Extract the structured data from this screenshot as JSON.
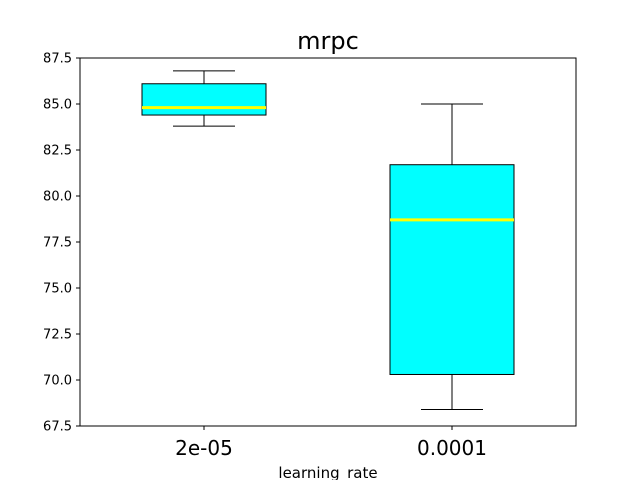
{
  "chart_data": {
    "type": "box",
    "title": "mrpc",
    "xlabel": "learning_rate",
    "ylabel": "",
    "ylim": [
      67.5,
      87.5
    ],
    "yticks": [
      "67.5",
      "70.0",
      "72.5",
      "75.0",
      "77.5",
      "80.0",
      "82.5",
      "85.0",
      "87.5"
    ],
    "categories": [
      "2e-05",
      "0.0001"
    ],
    "boxes": [
      {
        "category": "2e-05",
        "whisker_low": 83.8,
        "q1": 84.4,
        "median": 84.8,
        "q3": 86.1,
        "whisker_high": 86.8
      },
      {
        "category": "0.0001",
        "whisker_low": 68.4,
        "q1": 70.3,
        "median": 78.7,
        "q3": 81.7,
        "whisker_high": 85.0
      }
    ],
    "grid": false,
    "colors": {
      "box_fill": "#00ffff",
      "median": "#ffff00",
      "edge": "#000000"
    }
  }
}
